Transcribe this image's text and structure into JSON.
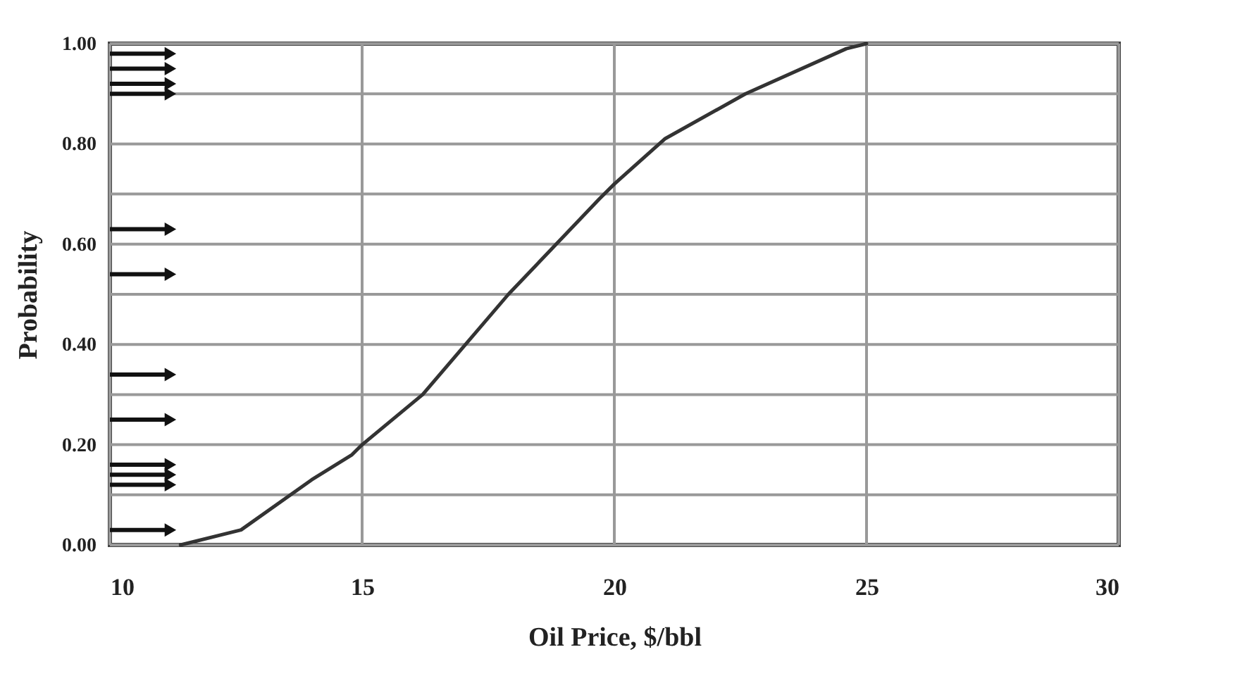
{
  "chart_data": {
    "type": "line",
    "xlabel": "Oil Price, $/bbl",
    "ylabel": "Probability",
    "xlim": [
      10,
      30
    ],
    "xticks": [
      10,
      15,
      20,
      25,
      30
    ],
    "ylim": [
      0,
      1
    ],
    "yticks": [
      {
        "value": 0,
        "label": "0.00"
      },
      {
        "value": 0.1,
        "label": null
      },
      {
        "value": 0.2,
        "label": "0.20"
      },
      {
        "value": 0.3,
        "label": null
      },
      {
        "value": 0.4,
        "label": "0.40"
      },
      {
        "value": 0.5,
        "label": null
      },
      {
        "value": 0.6,
        "label": "0.60"
      },
      {
        "value": 0.7,
        "label": null
      },
      {
        "value": 0.8,
        "label": "0.80"
      },
      {
        "value": 0.9,
        "label": null
      },
      {
        "value": 1,
        "label": "1.00"
      }
    ],
    "grid": true,
    "marker": "none",
    "line_style": "solid",
    "series": [
      {
        "color": "#333333",
        "x": [
          11.4,
          12.6,
          14.0,
          14.8,
          15.0,
          16.2,
          17.9,
          19.7,
          20.0,
          21.0,
          22.6,
          24.6,
          25.0
        ],
        "values": [
          0.0,
          0.03,
          0.13,
          0.18,
          0.2,
          0.3,
          0.5,
          0.69,
          0.72,
          0.81,
          0.9,
          0.99,
          1.0
        ]
      },
      {
        "type": "scatter",
        "marker": "triangle",
        "color": "#111111",
        "x": [
          11.2,
          11.2,
          11.2,
          11.2,
          11.2,
          11.2,
          11.2,
          11.2,
          11.2,
          11.2,
          11.2,
          11.2
        ],
        "values": [
          0.98,
          0.95,
          0.92,
          0.9,
          0.63,
          0.54,
          0.34,
          0.25,
          0.16,
          0.14,
          0.12,
          0.03
        ],
        "xerrors": [
          [
            10,
            11.2
          ],
          [
            10,
            11.2
          ],
          [
            10,
            11.2
          ],
          [
            10,
            11.2
          ],
          [
            10,
            11.2
          ],
          [
            10,
            11.2
          ],
          [
            10,
            11.2
          ],
          [
            10,
            11.2
          ],
          [
            10,
            11.2
          ],
          [
            10,
            11.2
          ],
          [
            10,
            11.2
          ],
          [
            10,
            11.2
          ]
        ]
      }
    ]
  }
}
